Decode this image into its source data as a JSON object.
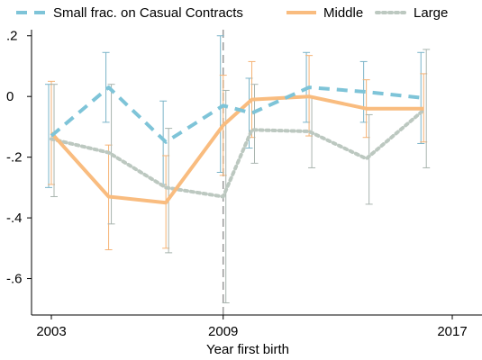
{
  "chart_data": {
    "type": "line",
    "title": "",
    "xlabel": "Year first birth",
    "ylabel": "",
    "x": [
      2003,
      2005,
      2007,
      2009,
      2010,
      2012,
      2014,
      2016,
      2017
    ],
    "xlim": [
      2003,
      2017
    ],
    "ylim": [
      -0.72,
      0.22
    ],
    "x_ticks": [
      {
        "value": 2003,
        "label": "2003"
      },
      {
        "value": 2009,
        "label": "2009"
      },
      {
        "value": 2017,
        "label": "2017"
      }
    ],
    "y_ticks": [
      {
        "value": 0.2,
        "label": ".2"
      },
      {
        "value": 0,
        "label": "0"
      },
      {
        "value": -0.2,
        "label": "-.2"
      },
      {
        "value": -0.4,
        "label": "-.4"
      },
      {
        "value": -0.6,
        "label": "-.6"
      }
    ],
    "reference_line_x": 2009,
    "legend_position": "top",
    "grid": false,
    "series": [
      {
        "name": "Small frac. on Casual Contracts",
        "color": "#7ec4d8",
        "line_style": "dashed",
        "errorbar_color": "#7ab4c8",
        "points": [
          {
            "x": 2003,
            "y": -0.13,
            "lo": -0.3,
            "hi": 0.04
          },
          {
            "x": 2005,
            "y": 0.03,
            "lo": -0.085,
            "hi": 0.145
          },
          {
            "x": 2007,
            "y": -0.15,
            "lo": -0.29,
            "hi": -0.015
          },
          {
            "x": 2009,
            "y": -0.03,
            "lo": -0.25,
            "hi": 0.2
          },
          {
            "x": 2010,
            "y": -0.055,
            "lo": -0.17,
            "hi": 0.06
          },
          {
            "x": 2012,
            "y": 0.03,
            "lo": -0.085,
            "hi": 0.145
          },
          {
            "x": 2014,
            "y": 0.015,
            "lo": -0.085,
            "hi": 0.115
          },
          {
            "x": 2016,
            "y": -0.005,
            "lo": -0.155,
            "hi": 0.145
          }
        ]
      },
      {
        "name": "Middle",
        "color": "#f9bc7f",
        "line_style": "solid",
        "errorbar_color": "#f5b274",
        "points": [
          {
            "x": 2003,
            "y": -0.12,
            "lo": -0.29,
            "hi": 0.05
          },
          {
            "x": 2005,
            "y": -0.33,
            "lo": -0.505,
            "hi": -0.16
          },
          {
            "x": 2007,
            "y": -0.35,
            "lo": -0.5,
            "hi": -0.195
          },
          {
            "x": 2009,
            "y": -0.095,
            "lo": -0.26,
            "hi": 0.07
          },
          {
            "x": 2010,
            "y": -0.01,
            "lo": -0.135,
            "hi": 0.115
          },
          {
            "x": 2012,
            "y": 0.0,
            "lo": -0.13,
            "hi": 0.135
          },
          {
            "x": 2014,
            "y": -0.04,
            "lo": -0.135,
            "hi": 0.055
          },
          {
            "x": 2016,
            "y": -0.04,
            "lo": -0.15,
            "hi": 0.075
          }
        ]
      },
      {
        "name": "Large",
        "color": "#bcc8c0",
        "line_style": "dotted",
        "errorbar_color": "#a8b4ae",
        "points": [
          {
            "x": 2003,
            "y": -0.14,
            "lo": -0.33,
            "hi": 0.04
          },
          {
            "x": 2005,
            "y": -0.185,
            "lo": -0.42,
            "hi": 0.04
          },
          {
            "x": 2007,
            "y": -0.3,
            "lo": -0.515,
            "hi": -0.105
          },
          {
            "x": 2009,
            "y": -0.33,
            "lo": -0.68,
            "hi": 0.02
          },
          {
            "x": 2010,
            "y": -0.11,
            "lo": -0.22,
            "hi": 0.04
          },
          {
            "x": 2012,
            "y": -0.115,
            "lo": -0.235,
            "hi": 0.0
          },
          {
            "x": 2014,
            "y": -0.205,
            "lo": -0.355,
            "hi": -0.06
          },
          {
            "x": 2016,
            "y": -0.045,
            "lo": -0.235,
            "hi": 0.155
          }
        ]
      }
    ]
  }
}
